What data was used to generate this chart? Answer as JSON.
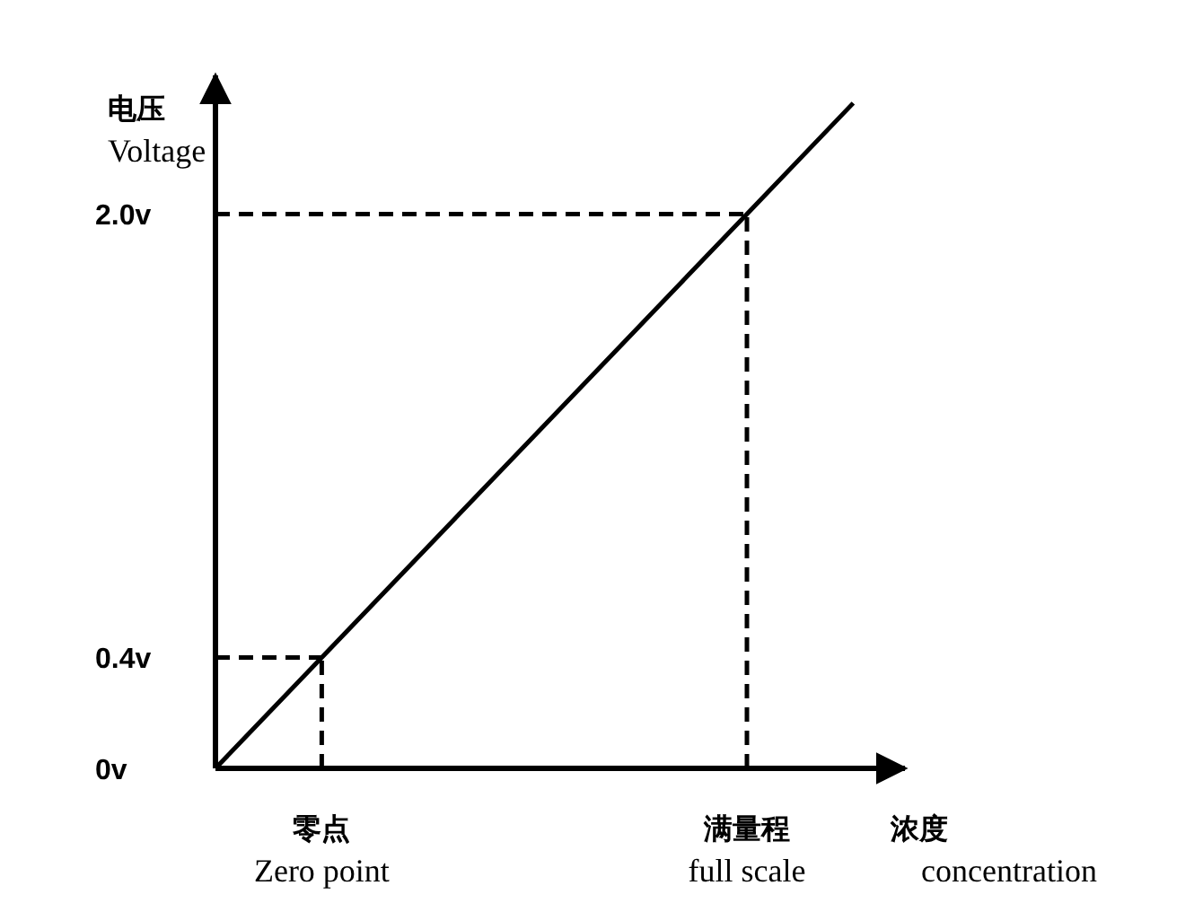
{
  "chart_data": {
    "type": "line",
    "xlabel": "浓度\nconcentration",
    "ylabel": "电压\nVoltage",
    "categories": [
      null,
      "零点\nZero point",
      null,
      null,
      null,
      "满量程\nfull scale",
      null
    ],
    "series": [
      {
        "color": "#000000",
        "values": [
          0,
          0.4,
          0.8,
          1.2,
          1.6,
          2.0,
          2.4
        ]
      }
    ],
    "ylim": [
      0,
      2.5
    ],
    "yticks": [
      {
        "value": 0,
        "label": "0v"
      },
      {
        "value": 0.4,
        "label": "0.4v"
      },
      {
        "value": 2.0,
        "label": "2.0v"
      }
    ],
    "ref_lines": [
      {
        "axis": "x",
        "value": "零点\nZero point",
        "line_style": "dashed",
        "color": "#000000"
      },
      {
        "axis": "y",
        "value": 0.4,
        "line_style": "dashed",
        "color": "#000000"
      },
      {
        "axis": "x",
        "value": "满量程\nfull scale",
        "line_style": "dashed",
        "color": "#000000"
      },
      {
        "axis": "y",
        "value": 2.0,
        "line_style": "dashed",
        "color": "#000000"
      }
    ],
    "grid": false,
    "marker": "none",
    "line_style": "solid"
  }
}
